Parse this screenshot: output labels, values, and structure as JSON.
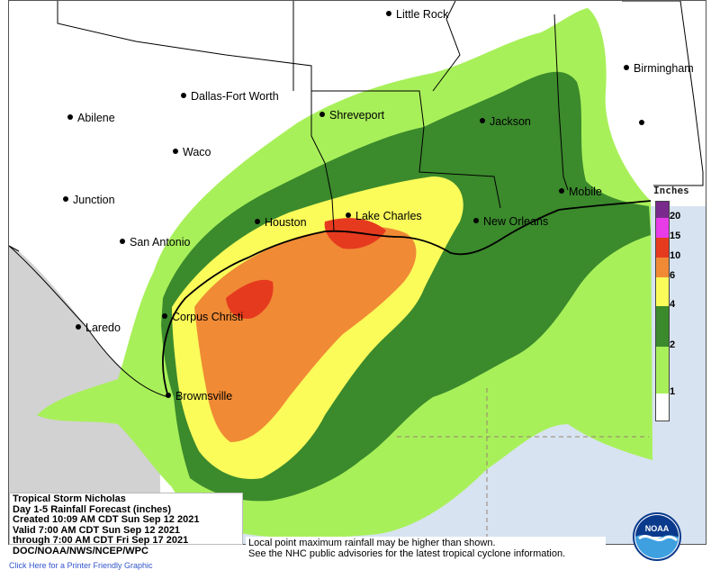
{
  "title_block": {
    "lines": [
      "Tropical Storm Nicholas",
      "Day 1-5 Rainfall Forecast (inches)",
      "Created 10:09 AM CDT Sun Sep 12 2021",
      "Valid 7:00 AM CDT Sun Sep 12 2021",
      "through 7:00 AM CDT Fri Sep 17 2021",
      "DOC/NOAA/NWS/NCEP/WPC"
    ]
  },
  "note": {
    "line1": "Local point maximum rainfall may be higher than shown.",
    "line2": "See the NHC public advisories for the latest tropical cyclone information."
  },
  "legend": {
    "title": "Inches",
    "bins": [
      {
        "from": 20,
        "color": "#7a2a8c"
      },
      {
        "from": 15,
        "color": "#e83ce8"
      },
      {
        "from": 10,
        "color": "#e63a1f"
      },
      {
        "from": 6,
        "color": "#f08a35"
      },
      {
        "from": 4,
        "color": "#fbfb5a"
      },
      {
        "from": 2,
        "color": "#3b8a2c"
      },
      {
        "from": 1,
        "color": "#a8f05a"
      },
      {
        "from": 0,
        "color": "#ffffff"
      }
    ],
    "tick_labels": [
      "20",
      "15",
      "10",
      "6",
      "4",
      "2",
      "1"
    ]
  },
  "cities": [
    {
      "name": "Little Rock"
    },
    {
      "name": "Birmingham"
    },
    {
      "name": "Dallas-Fort Worth"
    },
    {
      "name": "Abilene"
    },
    {
      "name": "Shreveport"
    },
    {
      "name": "Jackson"
    },
    {
      "name": "Waco"
    },
    {
      "name": "Mobile"
    },
    {
      "name": "Junction"
    },
    {
      "name": "Houston"
    },
    {
      "name": "Lake Charles"
    },
    {
      "name": "New Orleans"
    },
    {
      "name": "San Antonio"
    },
    {
      "name": "Corpus Christi"
    },
    {
      "name": "Laredo"
    },
    {
      "name": "Brownsville"
    }
  ],
  "colors": {
    "mexico_land": "#d2d2d2",
    "gulf_water": "#d7e3f0",
    "land_none": "#ffffff"
  },
  "footer": {
    "link_text": "Click Here for a Printer Friendly Graphic"
  }
}
